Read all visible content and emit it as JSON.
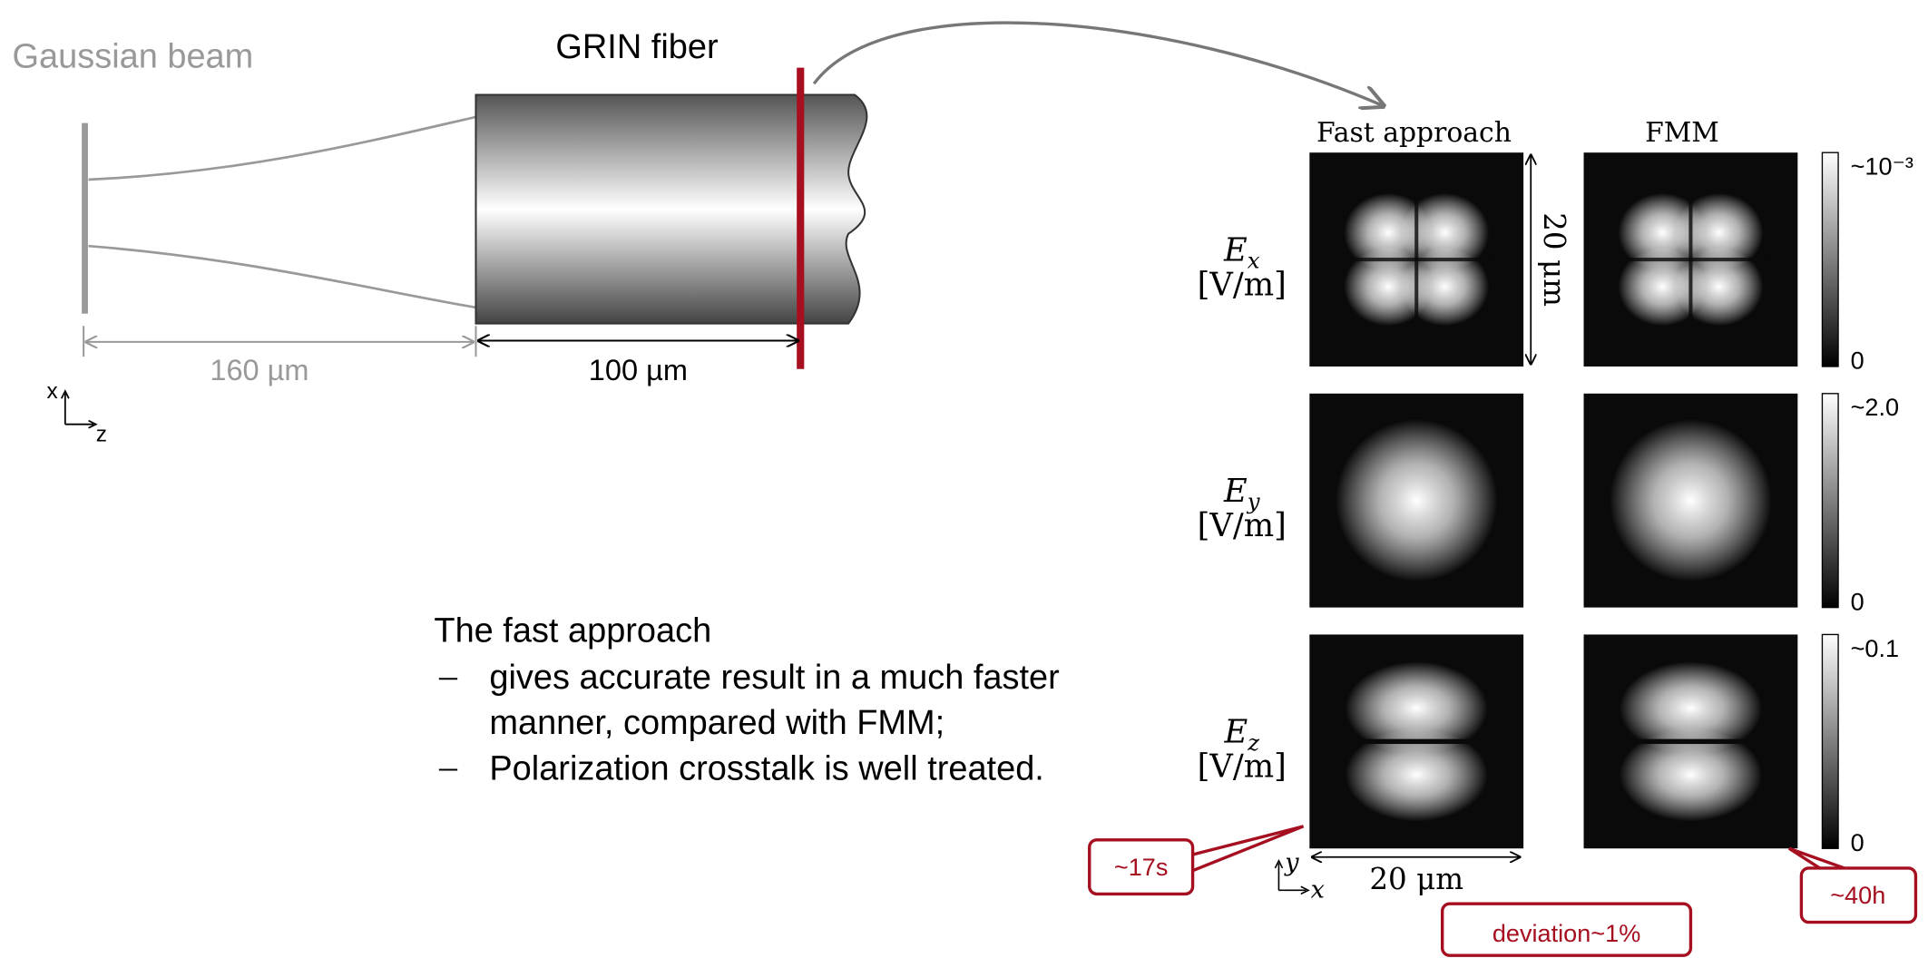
{
  "left": {
    "source_label": "Gaussian beam",
    "fiber_label": "GRIN fiber",
    "distance_1": "160 µm",
    "distance_2": "100 µm",
    "axis_x": "x",
    "axis_z": "z"
  },
  "description": {
    "intro": "The fast approach",
    "bullets": [
      [
        "gives accurate result in a much faster",
        "manner, compared with FMM;"
      ],
      [
        "Polarization crosstalk is well treated."
      ]
    ]
  },
  "panels": {
    "column_titles": [
      "Fast approach",
      "FMM"
    ],
    "rows": [
      {
        "symbol": "E",
        "subscript": "x",
        "unit": "[V/m]",
        "scale_max": "~10⁻³",
        "scale_min": "0"
      },
      {
        "symbol": "E",
        "subscript": "y",
        "unit": "[V/m]",
        "scale_max": "~2.0",
        "scale_min": "0"
      },
      {
        "symbol": "E",
        "subscript": "z",
        "unit": "[V/m]",
        "scale_max": "~0.1",
        "scale_min": "0"
      }
    ],
    "size_vertical": "20 μm",
    "size_horizontal": "20 μm",
    "axis_y": "y",
    "axis_x": "x"
  },
  "annotations": {
    "fast_time": "~17s",
    "fmm_time": "~40h",
    "deviation": "deviation~1%"
  }
}
